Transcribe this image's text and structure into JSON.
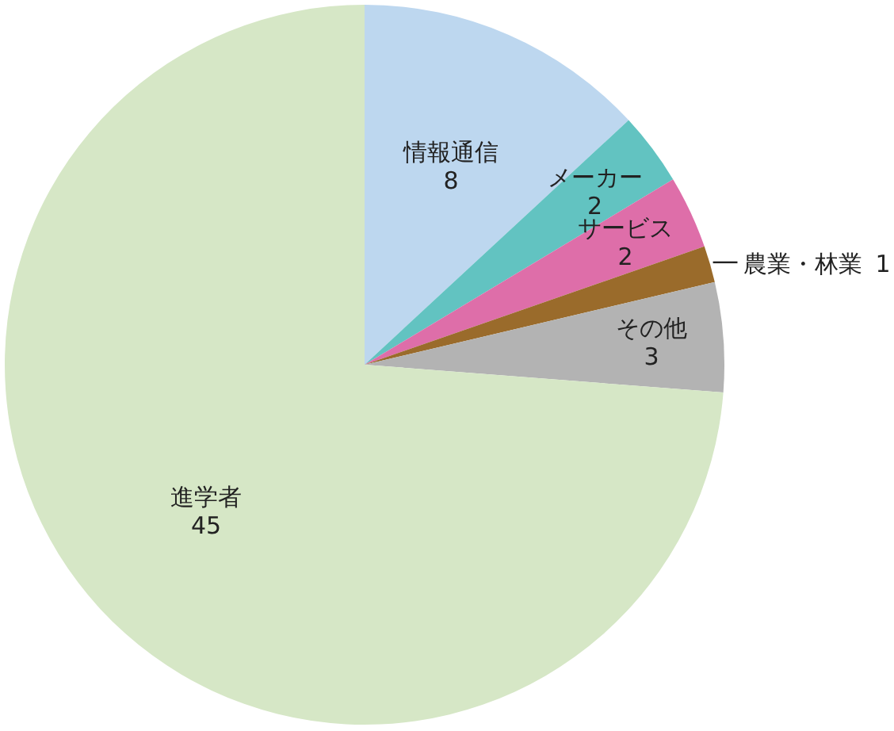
{
  "chart_data": {
    "type": "pie",
    "categories": [
      "情報通信",
      "メーカー",
      "サービス",
      "農業・林業",
      "その他",
      "進学者"
    ],
    "values": [
      8,
      2,
      2,
      1,
      3,
      45
    ],
    "colors": [
      "#bdd7ef",
      "#62c3c1",
      "#de6ea9",
      "#9a6b2b",
      "#b3b3b3",
      "#d6e7c6"
    ],
    "data_labels": true
  }
}
